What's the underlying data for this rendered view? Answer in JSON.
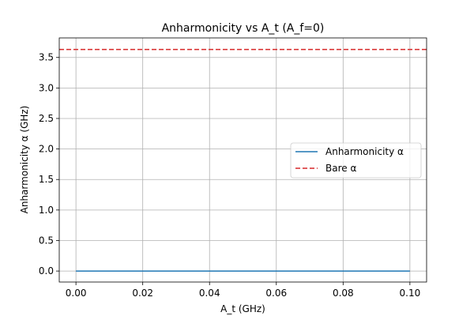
{
  "chart_data": {
    "type": "line",
    "title": "Anharmonicity vs A_t (A_f=0)",
    "xlabel": "A_t (GHz)",
    "ylabel": "Anharmonicity α (GHz)",
    "xlim": [
      -0.005,
      0.105
    ],
    "ylim": [
      -0.18,
      3.82
    ],
    "xticks": [
      0.0,
      0.02,
      0.04,
      0.06,
      0.08,
      0.1
    ],
    "xtick_labels": [
      "0.00",
      "0.02",
      "0.04",
      "0.06",
      "0.08",
      "0.10"
    ],
    "yticks": [
      0.0,
      0.5,
      1.0,
      1.5,
      2.0,
      2.5,
      3.0,
      3.5
    ],
    "ytick_labels": [
      "0.0",
      "0.5",
      "1.0",
      "1.5",
      "2.0",
      "2.5",
      "3.0",
      "3.5"
    ],
    "grid": true,
    "legend_position": "center-right",
    "series": [
      {
        "name": "Anharmonicity α",
        "style": "solid",
        "color": "#1f77b4",
        "x": [
          0.0,
          0.1
        ],
        "y": [
          0.0,
          0.0
        ]
      }
    ],
    "reference_lines": [
      {
        "name": "Bare α",
        "style": "dashed",
        "color": "#d62728",
        "orientation": "horizontal",
        "y": 3.63
      }
    ]
  }
}
